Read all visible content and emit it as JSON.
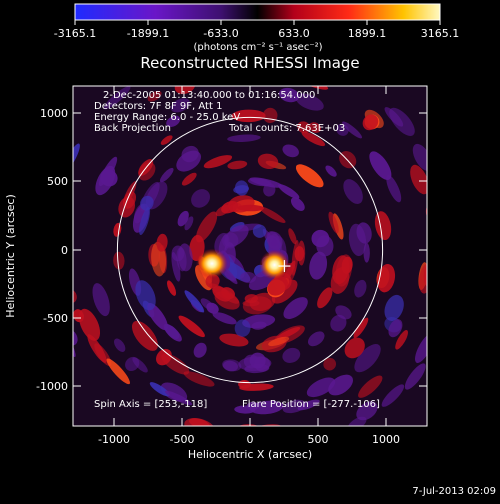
{
  "colorbar": {
    "ticks": [
      "-3165.1",
      "-1899.1",
      "-633.0",
      "633.0",
      "1899.1",
      "3165.1"
    ],
    "units_text": "(photons cm⁻² s⁻¹ asec⁻²)",
    "min": -3165.1,
    "max": 3165.1
  },
  "title": "Reconstructed RHESSI Image",
  "annotations": {
    "time_range": "2-Dec-2005 01:13:40.000 to 01:16:54.000",
    "detectors": "Detectors: 7F 8F 9F, Att 1",
    "energy": "Energy Range: 6.0 - 25.0 keV",
    "method": "Back Projection",
    "total_counts": "Total counts: 7.63E+03",
    "spin_axis": "Spin Axis = [253,-118]",
    "flare_position": "Flare Position = [-277.-106]"
  },
  "axes": {
    "xlabel": "Heliocentric X (arcsec)",
    "ylabel": "Heliocentric Y (arcsec)",
    "x_ticks": [
      "-1000",
      "-500",
      "0",
      "500",
      "1000"
    ],
    "y_ticks": [
      "1000",
      "500",
      "0",
      "-500",
      "-1000"
    ],
    "xlim": [
      -1300,
      1300
    ],
    "ylim": [
      -1300,
      1300
    ]
  },
  "solar_limb_radius_arcsec": 975,
  "sources": [
    {
      "x": -280,
      "y": -100
    },
    {
      "x": 180,
      "y": -110
    }
  ],
  "marker_position": [
    253,
    -118
  ],
  "footer_date": "7-Jul-2013 02:09",
  "colors": {
    "background": "#000000",
    "limb": "#ffffff",
    "colormap": [
      "#1f2bff",
      "#6a16c8",
      "#3e1070",
      "#000000",
      "#b3001a",
      "#ff2a16",
      "#ffc300",
      "#fff8c0"
    ]
  }
}
